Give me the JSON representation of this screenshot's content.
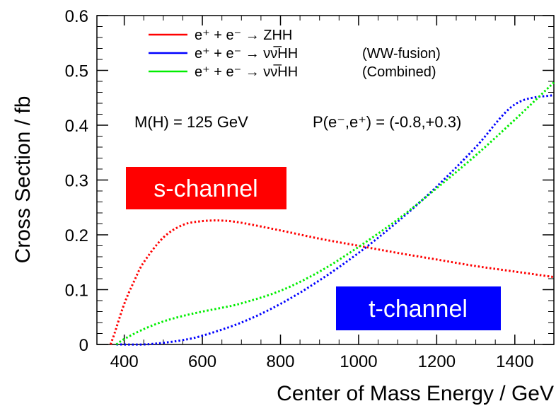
{
  "chart_data": {
    "type": "line",
    "xlabel": "Center of Mass Energy / GeV",
    "ylabel": "Cross Section / fb",
    "xlim": [
      330,
      1500
    ],
    "ylim": [
      0,
      0.6
    ],
    "x_ticks": [
      "400",
      "600",
      "800",
      "1000",
      "1200",
      "1400"
    ],
    "y_ticks": [
      "0",
      "0.1",
      "0.2",
      "0.3",
      "0.4",
      "0.5",
      "0.6"
    ],
    "grid": false,
    "legend_position": "top-left",
    "line_style": "dotted",
    "series": [
      {
        "name": "e⁺ + e⁻ → ZHH",
        "color": "#ff0000",
        "x": [
          365,
          375,
          400,
          425,
          450,
          500,
          550,
          600,
          650,
          700,
          800,
          900,
          1000,
          1100,
          1200,
          1300,
          1400,
          1500
        ],
        "values": [
          0.0,
          0.02,
          0.074,
          0.115,
          0.15,
          0.195,
          0.218,
          0.225,
          0.226,
          0.222,
          0.208,
          0.193,
          0.18,
          0.167,
          0.155,
          0.143,
          0.133,
          0.123
        ]
      },
      {
        "name": "e⁺ + e⁻ → νν̅HH  (WW-fusion)",
        "color": "#0000ff",
        "x": [
          380,
          450,
          500,
          550,
          600,
          700,
          800,
          900,
          1000,
          1100,
          1200,
          1300,
          1400,
          1500
        ],
        "values": [
          0.0,
          0.0,
          0.003,
          0.008,
          0.016,
          0.04,
          0.074,
          0.117,
          0.167,
          0.224,
          0.288,
          0.36,
          0.438,
          0.455
        ]
      },
      {
        "name": "e⁺ + e⁻ → νν̅HH  (Combined)",
        "color": "#00ee00",
        "x": [
          380,
          400,
          450,
          500,
          550,
          600,
          650,
          700,
          800,
          900,
          1000,
          1100,
          1200,
          1300,
          1400,
          1500
        ],
        "values": [
          0.0,
          0.01,
          0.028,
          0.042,
          0.052,
          0.06,
          0.067,
          0.075,
          0.098,
          0.133,
          0.178,
          0.228,
          0.285,
          0.345,
          0.41,
          0.478
        ]
      }
    ],
    "legend": [
      {
        "prefix": "e⁺ + e⁻ → ZHH",
        "suffix": ""
      },
      {
        "prefix": "e⁺ + e⁻ → νν̅HH",
        "suffix": "(WW-fusion)"
      },
      {
        "prefix": "e⁺ + e⁻ → νν̅HH",
        "suffix": "(Combined)"
      }
    ],
    "annotation": {
      "mass": "M(H) = 125 GeV",
      "polarization": "P(e⁻,e⁺) = (-0.8,+0.3)"
    },
    "labels": {
      "s_channel": {
        "text": "s-channel",
        "color": "#ff0000"
      },
      "t_channel": {
        "text": "t-channel",
        "color": "#0000ff"
      }
    }
  }
}
